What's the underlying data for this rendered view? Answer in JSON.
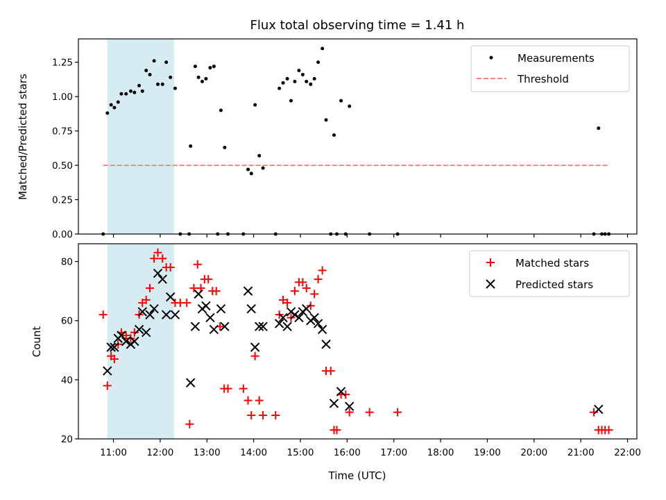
{
  "chart_data": [
    {
      "type": "scatter",
      "title": "Flux total observing time = 1.41 h",
      "xlabel": "",
      "ylabel": "Matched/Predicted stars",
      "x_unit": "hours (UTC)",
      "xlim": [
        10.25,
        22.2
      ],
      "ylim": [
        0,
        1.42
      ],
      "yticks": [
        0.0,
        0.25,
        0.5,
        0.75,
        1.0,
        1.25
      ],
      "ytick_labels": [
        "0.00",
        "0.25",
        "0.50",
        "0.75",
        "1.00",
        "1.25"
      ],
      "highlight_span": {
        "x": [
          10.87,
          12.3
        ],
        "color": "#add8e6"
      },
      "legend_position": "upper right",
      "series": [
        {
          "name": "Measurements",
          "marker": "dot",
          "color": "#000000",
          "points": [
            [
              10.78,
              0.0
            ],
            [
              10.87,
              0.88
            ],
            [
              10.95,
              0.94
            ],
            [
              11.02,
              0.92
            ],
            [
              11.1,
              0.96
            ],
            [
              11.17,
              1.02
            ],
            [
              11.27,
              1.02
            ],
            [
              11.37,
              1.04
            ],
            [
              11.45,
              1.03
            ],
            [
              11.55,
              1.08
            ],
            [
              11.62,
              1.04
            ],
            [
              11.7,
              1.19
            ],
            [
              11.78,
              1.16
            ],
            [
              11.87,
              1.26
            ],
            [
              11.95,
              1.09
            ],
            [
              12.05,
              1.09
            ],
            [
              12.13,
              1.25
            ],
            [
              12.22,
              1.14
            ],
            [
              12.32,
              1.06
            ],
            [
              12.43,
              0.0
            ],
            [
              12.62,
              0.0
            ],
            [
              12.65,
              0.64
            ],
            [
              12.75,
              1.22
            ],
            [
              12.82,
              1.14
            ],
            [
              12.9,
              1.11
            ],
            [
              12.98,
              1.13
            ],
            [
              13.07,
              1.21
            ],
            [
              13.15,
              1.22
            ],
            [
              13.23,
              0.0
            ],
            [
              13.3,
              0.9
            ],
            [
              13.38,
              0.63
            ],
            [
              13.45,
              0.0
            ],
            [
              13.78,
              0.0
            ],
            [
              13.88,
              0.47
            ],
            [
              13.95,
              0.44
            ],
            [
              14.03,
              0.94
            ],
            [
              14.12,
              0.57
            ],
            [
              14.2,
              0.48
            ],
            [
              14.47,
              0.0
            ],
            [
              14.55,
              1.06
            ],
            [
              14.63,
              1.1
            ],
            [
              14.72,
              1.13
            ],
            [
              14.8,
              0.97
            ],
            [
              14.88,
              1.11
            ],
            [
              14.97,
              1.19
            ],
            [
              15.05,
              1.16
            ],
            [
              15.13,
              1.11
            ],
            [
              15.22,
              1.09
            ],
            [
              15.3,
              1.13
            ],
            [
              15.38,
              1.25
            ],
            [
              15.47,
              1.35
            ],
            [
              15.55,
              0.83
            ],
            [
              15.65,
              0.0
            ],
            [
              15.72,
              0.72
            ],
            [
              15.78,
              0.0
            ],
            [
              15.87,
              0.97
            ],
            [
              15.97,
              0.0
            ],
            [
              16.05,
              0.93
            ],
            [
              16.48,
              0.0
            ],
            [
              17.08,
              0.0
            ],
            [
              21.28,
              0.0
            ],
            [
              21.38,
              0.77
            ],
            [
              21.45,
              0.0
            ],
            [
              21.52,
              0.0
            ],
            [
              21.6,
              0.0
            ]
          ]
        },
        {
          "name": "Threshold",
          "marker": "dashed-line",
          "color": "#ff8080",
          "points": [
            [
              10.78,
              0.5
            ],
            [
              21.62,
              0.5
            ]
          ]
        }
      ]
    },
    {
      "type": "scatter",
      "title": "",
      "xlabel": "Time (UTC)",
      "ylabel": "Count",
      "x_unit": "hours (UTC)",
      "xlim": [
        10.25,
        22.2
      ],
      "ylim": [
        20,
        86
      ],
      "yticks": [
        20,
        40,
        60,
        80
      ],
      "ytick_labels": [
        "20",
        "40",
        "60",
        "80"
      ],
      "xticks": [
        11,
        12,
        13,
        14,
        15,
        16,
        17,
        18,
        19,
        20,
        21,
        22
      ],
      "xtick_labels": [
        "11:00",
        "12:00",
        "13:00",
        "14:00",
        "15:00",
        "16:00",
        "17:00",
        "18:00",
        "19:00",
        "20:00",
        "21:00",
        "22:00"
      ],
      "highlight_span": {
        "x": [
          10.87,
          12.3
        ],
        "color": "#add8e6"
      },
      "legend_position": "upper right",
      "series": [
        {
          "name": "Matched stars",
          "marker": "plus",
          "color": "#ff0000",
          "points": [
            [
              10.78,
              62
            ],
            [
              10.87,
              38
            ],
            [
              10.95,
              48
            ],
            [
              11.02,
              47
            ],
            [
              11.1,
              52
            ],
            [
              11.17,
              56
            ],
            [
              11.27,
              55
            ],
            [
              11.37,
              54
            ],
            [
              11.45,
              56
            ],
            [
              11.55,
              62
            ],
            [
              11.62,
              66
            ],
            [
              11.7,
              67
            ],
            [
              11.78,
              71
            ],
            [
              11.87,
              81
            ],
            [
              11.95,
              83
            ],
            [
              12.05,
              81
            ],
            [
              12.13,
              78
            ],
            [
              12.22,
              78
            ],
            [
              12.32,
              66
            ],
            [
              12.43,
              66
            ],
            [
              12.57,
              66
            ],
            [
              12.63,
              25
            ],
            [
              12.72,
              71
            ],
            [
              12.8,
              79
            ],
            [
              12.87,
              71
            ],
            [
              12.95,
              74
            ],
            [
              13.03,
              74
            ],
            [
              13.12,
              70
            ],
            [
              13.2,
              70
            ],
            [
              13.28,
              58
            ],
            [
              13.37,
              37
            ],
            [
              13.45,
              37
            ],
            [
              13.78,
              37
            ],
            [
              13.88,
              33
            ],
            [
              13.95,
              28
            ],
            [
              14.03,
              48
            ],
            [
              14.12,
              33
            ],
            [
              14.2,
              28
            ],
            [
              14.47,
              28
            ],
            [
              14.55,
              62
            ],
            [
              14.63,
              67
            ],
            [
              14.72,
              66
            ],
            [
              14.8,
              61
            ],
            [
              14.88,
              70
            ],
            [
              14.97,
              73
            ],
            [
              15.05,
              73
            ],
            [
              15.13,
              71
            ],
            [
              15.22,
              65
            ],
            [
              15.3,
              69
            ],
            [
              15.38,
              74
            ],
            [
              15.47,
              77
            ],
            [
              15.55,
              43
            ],
            [
              15.65,
              43
            ],
            [
              15.72,
              23
            ],
            [
              15.78,
              23
            ],
            [
              15.87,
              35
            ],
            [
              15.97,
              35
            ],
            [
              16.05,
              29
            ],
            [
              16.48,
              29
            ],
            [
              17.08,
              29
            ],
            [
              21.28,
              29
            ],
            [
              21.38,
              23
            ],
            [
              21.45,
              23
            ],
            [
              21.52,
              23
            ],
            [
              21.6,
              23
            ]
          ]
        },
        {
          "name": "Predicted stars",
          "marker": "x",
          "color": "#000000",
          "points": [
            [
              10.87,
              43
            ],
            [
              10.95,
              51
            ],
            [
              11.02,
              51
            ],
            [
              11.1,
              54
            ],
            [
              11.17,
              55
            ],
            [
              11.27,
              53
            ],
            [
              11.37,
              52
            ],
            [
              11.45,
              53
            ],
            [
              11.55,
              57
            ],
            [
              11.62,
              63
            ],
            [
              11.7,
              56
            ],
            [
              11.78,
              62
            ],
            [
              11.87,
              64
            ],
            [
              11.95,
              76
            ],
            [
              12.05,
              74
            ],
            [
              12.13,
              62
            ],
            [
              12.22,
              68
            ],
            [
              12.32,
              62
            ],
            [
              12.65,
              39
            ],
            [
              12.75,
              58
            ],
            [
              12.82,
              69
            ],
            [
              12.9,
              64
            ],
            [
              12.98,
              65
            ],
            [
              13.07,
              61
            ],
            [
              13.15,
              57
            ],
            [
              13.3,
              64
            ],
            [
              13.38,
              58
            ],
            [
              13.88,
              70
            ],
            [
              13.95,
              64
            ],
            [
              14.03,
              51
            ],
            [
              14.12,
              58
            ],
            [
              14.2,
              58
            ],
            [
              14.55,
              59
            ],
            [
              14.63,
              61
            ],
            [
              14.72,
              58
            ],
            [
              14.8,
              63
            ],
            [
              14.88,
              62
            ],
            [
              14.97,
              61
            ],
            [
              15.05,
              63
            ],
            [
              15.13,
              64
            ],
            [
              15.22,
              60
            ],
            [
              15.3,
              61
            ],
            [
              15.38,
              59
            ],
            [
              15.47,
              57
            ],
            [
              15.55,
              52
            ],
            [
              15.72,
              32
            ],
            [
              15.87,
              36
            ],
            [
              16.05,
              31
            ],
            [
              21.38,
              30
            ]
          ]
        }
      ]
    }
  ]
}
